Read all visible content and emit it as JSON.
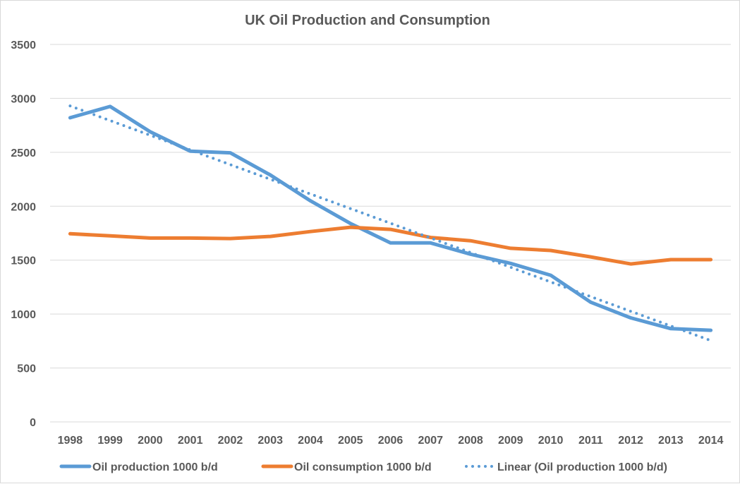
{
  "chart_data": {
    "type": "line",
    "title": "UK Oil Production and Consumption",
    "xlabel": "",
    "ylabel": "",
    "x": [
      "1998",
      "1999",
      "2000",
      "2001",
      "2002",
      "2003",
      "2004",
      "2005",
      "2006",
      "2007",
      "2008",
      "2009",
      "2010",
      "2011",
      "2012",
      "2013",
      "2014"
    ],
    "ylim": [
      0,
      3500
    ],
    "yticks": [
      "0",
      "500",
      "1000",
      "1500",
      "2000",
      "2500",
      "3000",
      "3500"
    ],
    "grid": true,
    "legend_position": "bottom",
    "series": [
      {
        "name": "Oil production 1000 b/d",
        "color": "#5b9bd5",
        "style": "solid",
        "values": [
          2820,
          2925,
          2690,
          2510,
          2495,
          2290,
          2050,
          1840,
          1660,
          1660,
          1555,
          1470,
          1360,
          1110,
          965,
          865,
          850
        ]
      },
      {
        "name": "Oil consumption 1000 b/d",
        "color": "#ed7d31",
        "style": "solid",
        "values": [
          1745,
          1725,
          1705,
          1705,
          1700,
          1720,
          1765,
          1805,
          1785,
          1710,
          1680,
          1610,
          1590,
          1530,
          1465,
          1505,
          1505
        ]
      },
      {
        "name": "Linear (Oil production 1000 b/d)",
        "color": "#5b9bd5",
        "style": "dotted",
        "values": [
          2930,
          2794,
          2658,
          2522,
          2386,
          2250,
          2114,
          1978,
          1842,
          1706,
          1570,
          1434,
          1298,
          1162,
          1026,
          890,
          754
        ]
      }
    ]
  }
}
